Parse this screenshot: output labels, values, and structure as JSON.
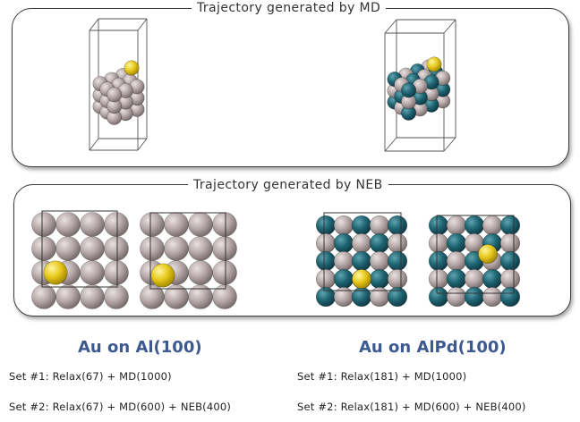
{
  "md_panel": {
    "title": "Trajectory generated by MD"
  },
  "neb_panel": {
    "title": "Trajectory generated by NEB"
  },
  "systems": [
    {
      "heading": "Au on Al(100)",
      "sets": [
        "Set #1: Relax(67) + MD(1000)",
        "Set #2: Relax(67) + MD(600) + NEB(400)"
      ]
    },
    {
      "heading": "Au on AlPd(100)",
      "sets": [
        "Set #1: Relax(181) + MD(1000)",
        "Set #2: Relax(181) + MD(600) + NEB(400)"
      ]
    }
  ],
  "colors": {
    "al_atom": "#b3a5a5",
    "pd_atom": "#1f6472",
    "au_atom": "#e6c81a",
    "heading_blue": "#3c5a8f",
    "panel_border": "#3a3a3a"
  }
}
